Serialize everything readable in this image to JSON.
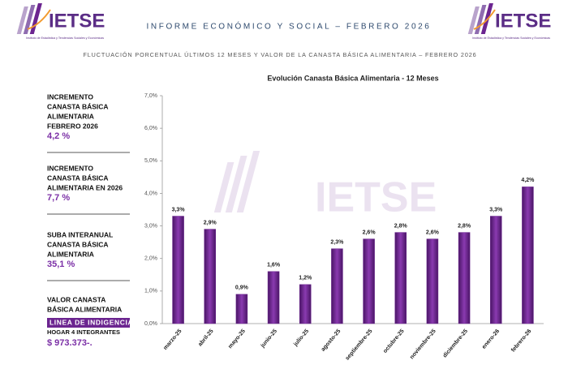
{
  "header": {
    "logo": {
      "name": "IETSE",
      "tagline": "Instituto de Estadística y Tendencias Sociales y Económicas"
    },
    "title": "INFORME ECONÓMICO Y SOCIAL – FEBRERO 2026",
    "subtitle": "FLUCTUACIÓN PORCENTUAL ÚLTIMOS 12 MESES Y VALOR DE LA  CANASTA BÁSICA ALIMENTARIA – FEBRERO 2026"
  },
  "sidebar": [
    {
      "label_lines": [
        "INCREMENTO",
        "CANASTA BÁSICA",
        "ALIMENTARIA",
        "FEBRERO 2026"
      ],
      "value": "4,2 %"
    },
    {
      "label_lines": [
        "INCREMENTO",
        "CANASTA BÁSICA",
        "ALIMENTARIA EN 2026"
      ],
      "value": "7,7 %"
    },
    {
      "label_lines": [
        "SUBA INTERANUAL",
        "CANASTA BÁSICA",
        "ALIMENTARIA"
      ],
      "value": "35,1 %"
    },
    {
      "label_lines": [
        "VALOR CANASTA",
        "BÁSICA ALIMENTARIA"
      ],
      "badge": "LINEA DE INDIGENCIA",
      "note": "HOGAR 4 INTEGRANTES",
      "value": "$ 973.373-."
    }
  ],
  "chart_data": {
    "type": "bar",
    "title": "Evolución Canasta Básica Alimentaria - 12 Meses",
    "categories": [
      "marzo-25",
      "abril-25",
      "mayo-25",
      "junio-25",
      "julio-25",
      "agosto-25",
      "septiembre-25",
      "octubre-25",
      "noviembre-25",
      "diciembre-25",
      "enero-26",
      "febrero-26"
    ],
    "values": [
      3.3,
      2.9,
      0.9,
      1.6,
      1.2,
      2.3,
      2.6,
      2.8,
      2.6,
      2.8,
      3.3,
      4.2
    ],
    "value_labels": [
      "3,3%",
      "2,9%",
      "0,9%",
      "1,6%",
      "1,2%",
      "2,3%",
      "2,6%",
      "2,8%",
      "2,6%",
      "2,8%",
      "3,3%",
      "4,2%"
    ],
    "color": "#6c2590",
    "ylim": [
      0,
      7
    ],
    "yticks": [
      {
        "value": 0,
        "label": "0,0%"
      },
      {
        "value": 1,
        "label": "1,0%"
      },
      {
        "value": 2,
        "label": "2,0%"
      },
      {
        "value": 3,
        "label": "3,0%"
      },
      {
        "value": 4,
        "label": "4,0%"
      },
      {
        "value": 5,
        "label": "5,0%"
      },
      {
        "value": 6,
        "label": "6,0%"
      },
      {
        "value": 7,
        "label": "7,0%"
      }
    ],
    "grid": false
  }
}
